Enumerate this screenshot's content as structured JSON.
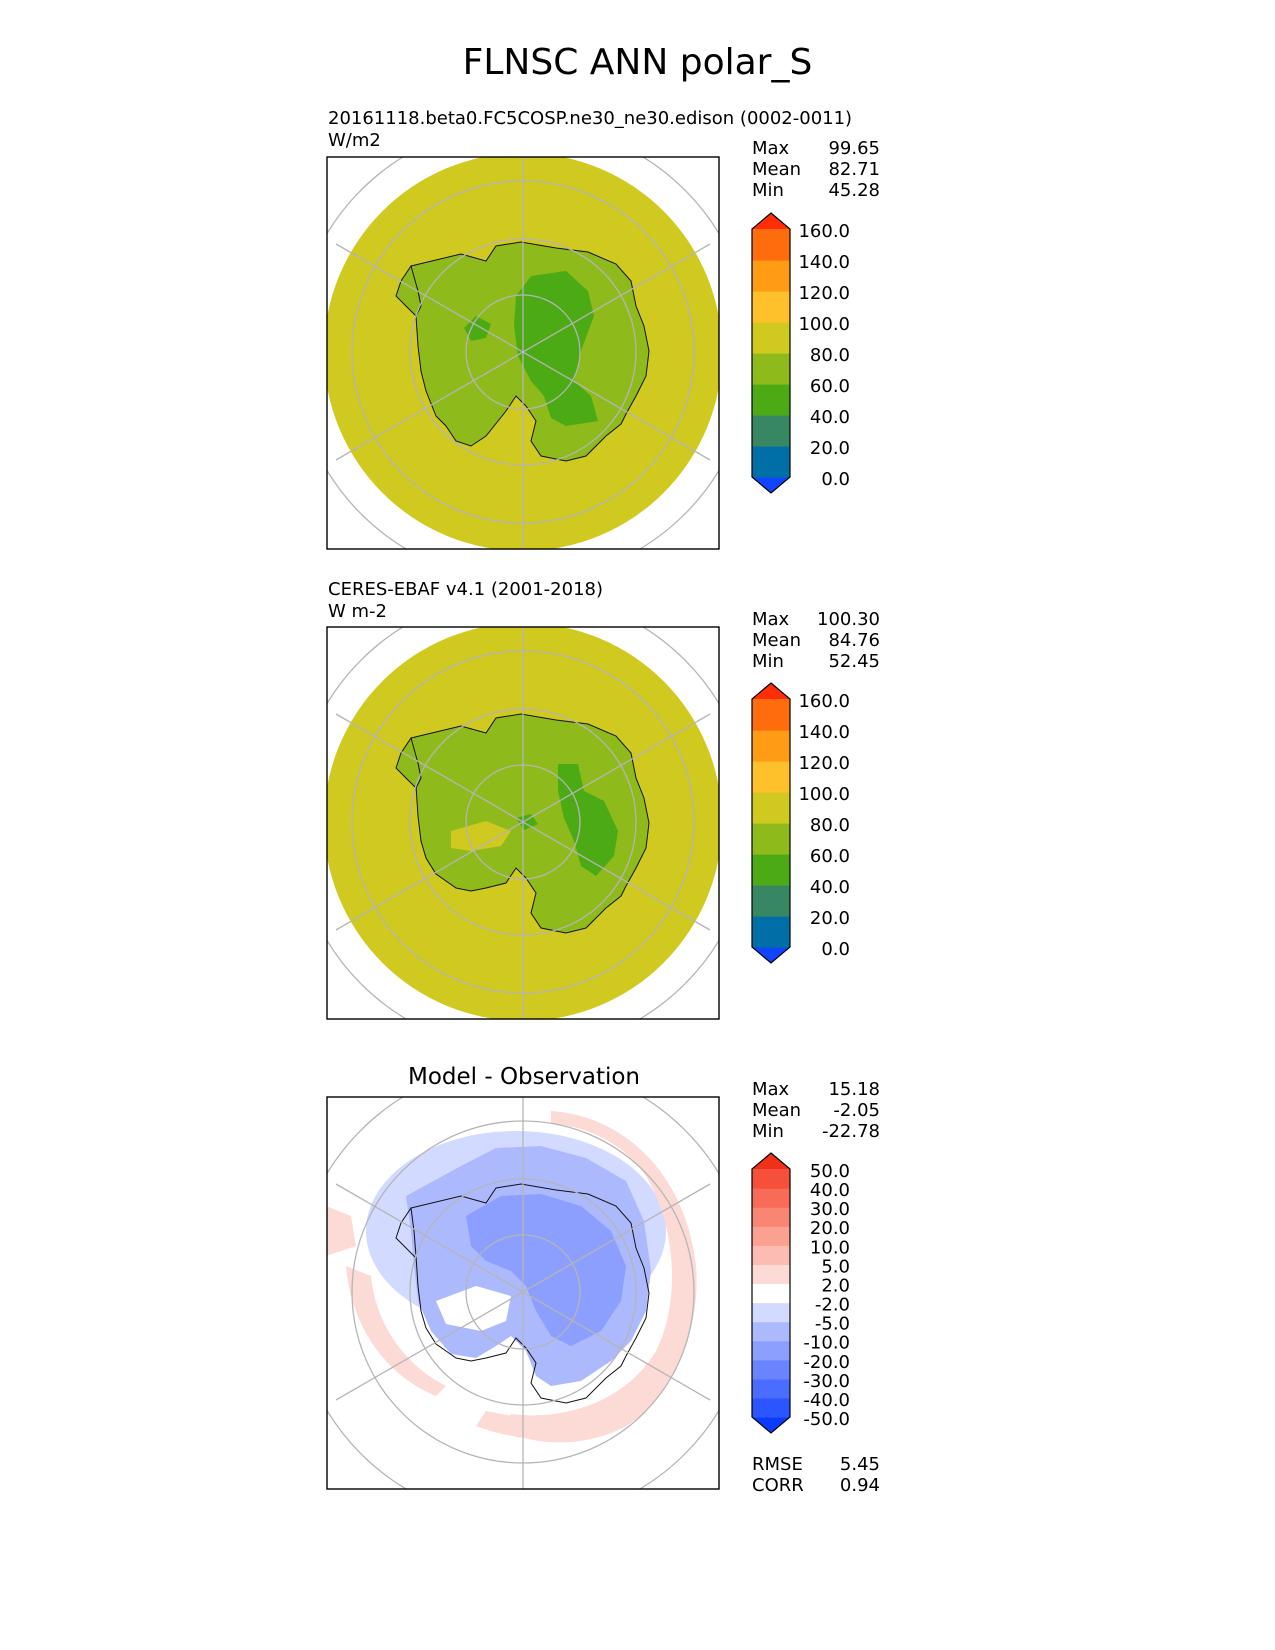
{
  "title": "FLNSC ANN polar_S",
  "colors": {
    "land_green_dark": "#4caa14",
    "land_green": "#8fba1c",
    "ocean_yellow": "#d0c91f",
    "grid": "#b5b5b5",
    "frame": "#000000"
  },
  "chart_data": [
    {
      "type": "heatmap",
      "projection": "south-polar-stereographic",
      "title": "20161118.beta0.FC5COSP.ne30_ne30.edison (0002-0011)",
      "units": "W/m2",
      "stats": [
        {
          "label": "Max",
          "value": "99.65"
        },
        {
          "label": "Mean",
          "value": "82.71"
        },
        {
          "label": "Min",
          "value": "45.28"
        }
      ],
      "colorbar": {
        "extend": "both",
        "ticks": [
          "160.0",
          "140.0",
          "120.0",
          "100.0",
          "80.0",
          "60.0",
          "40.0",
          "20.0",
          "0.0"
        ],
        "colors": [
          "#0f45ff",
          "#006fa8",
          "#378763",
          "#4caa14",
          "#8fba1c",
          "#d0c91f",
          "#fec12b",
          "#ff9b14",
          "#ff6c0d",
          "#ff2e08"
        ]
      }
    },
    {
      "type": "heatmap",
      "projection": "south-polar-stereographic",
      "title": "CERES-EBAF v4.1 (2001-2018)",
      "units": "W m-2",
      "stats": [
        {
          "label": "Max",
          "value": "100.30"
        },
        {
          "label": "Mean",
          "value": "84.76"
        },
        {
          "label": "Min",
          "value": "52.45"
        }
      ],
      "colorbar": {
        "extend": "both",
        "ticks": [
          "160.0",
          "140.0",
          "120.0",
          "100.0",
          "80.0",
          "60.0",
          "40.0",
          "20.0",
          "0.0"
        ],
        "colors": [
          "#0f45ff",
          "#006fa8",
          "#378763",
          "#4caa14",
          "#8fba1c",
          "#d0c91f",
          "#fec12b",
          "#ff9b14",
          "#ff6c0d",
          "#ff2e08"
        ]
      }
    },
    {
      "type": "heatmap",
      "projection": "south-polar-stereographic",
      "title": "Model - Observation",
      "stats": [
        {
          "label": "Max",
          "value": "15.18"
        },
        {
          "label": "Mean",
          "value": "-2.05"
        },
        {
          "label": "Min",
          "value": "-22.78"
        }
      ],
      "metrics": [
        {
          "label": "RMSE",
          "value": "5.45"
        },
        {
          "label": "CORR",
          "value": "0.94"
        }
      ],
      "colorbar": {
        "extend": "both",
        "ticks": [
          "50.0",
          "40.0",
          "30.0",
          "20.0",
          "10.0",
          "5.0",
          "2.0",
          "-2.0",
          "-5.0",
          "-10.0",
          "-20.0",
          "-30.0",
          "-40.0",
          "-50.0"
        ],
        "colors": [
          "#0a3cff",
          "#2a55ff",
          "#4a6cff",
          "#6a84ff",
          "#8c9efe",
          "#adb9fd",
          "#d2daff",
          "#ffffff",
          "#fcdad6",
          "#fcbcb3",
          "#fba192",
          "#f98573",
          "#f86b57",
          "#f64f3a",
          "#f03017"
        ]
      }
    }
  ]
}
